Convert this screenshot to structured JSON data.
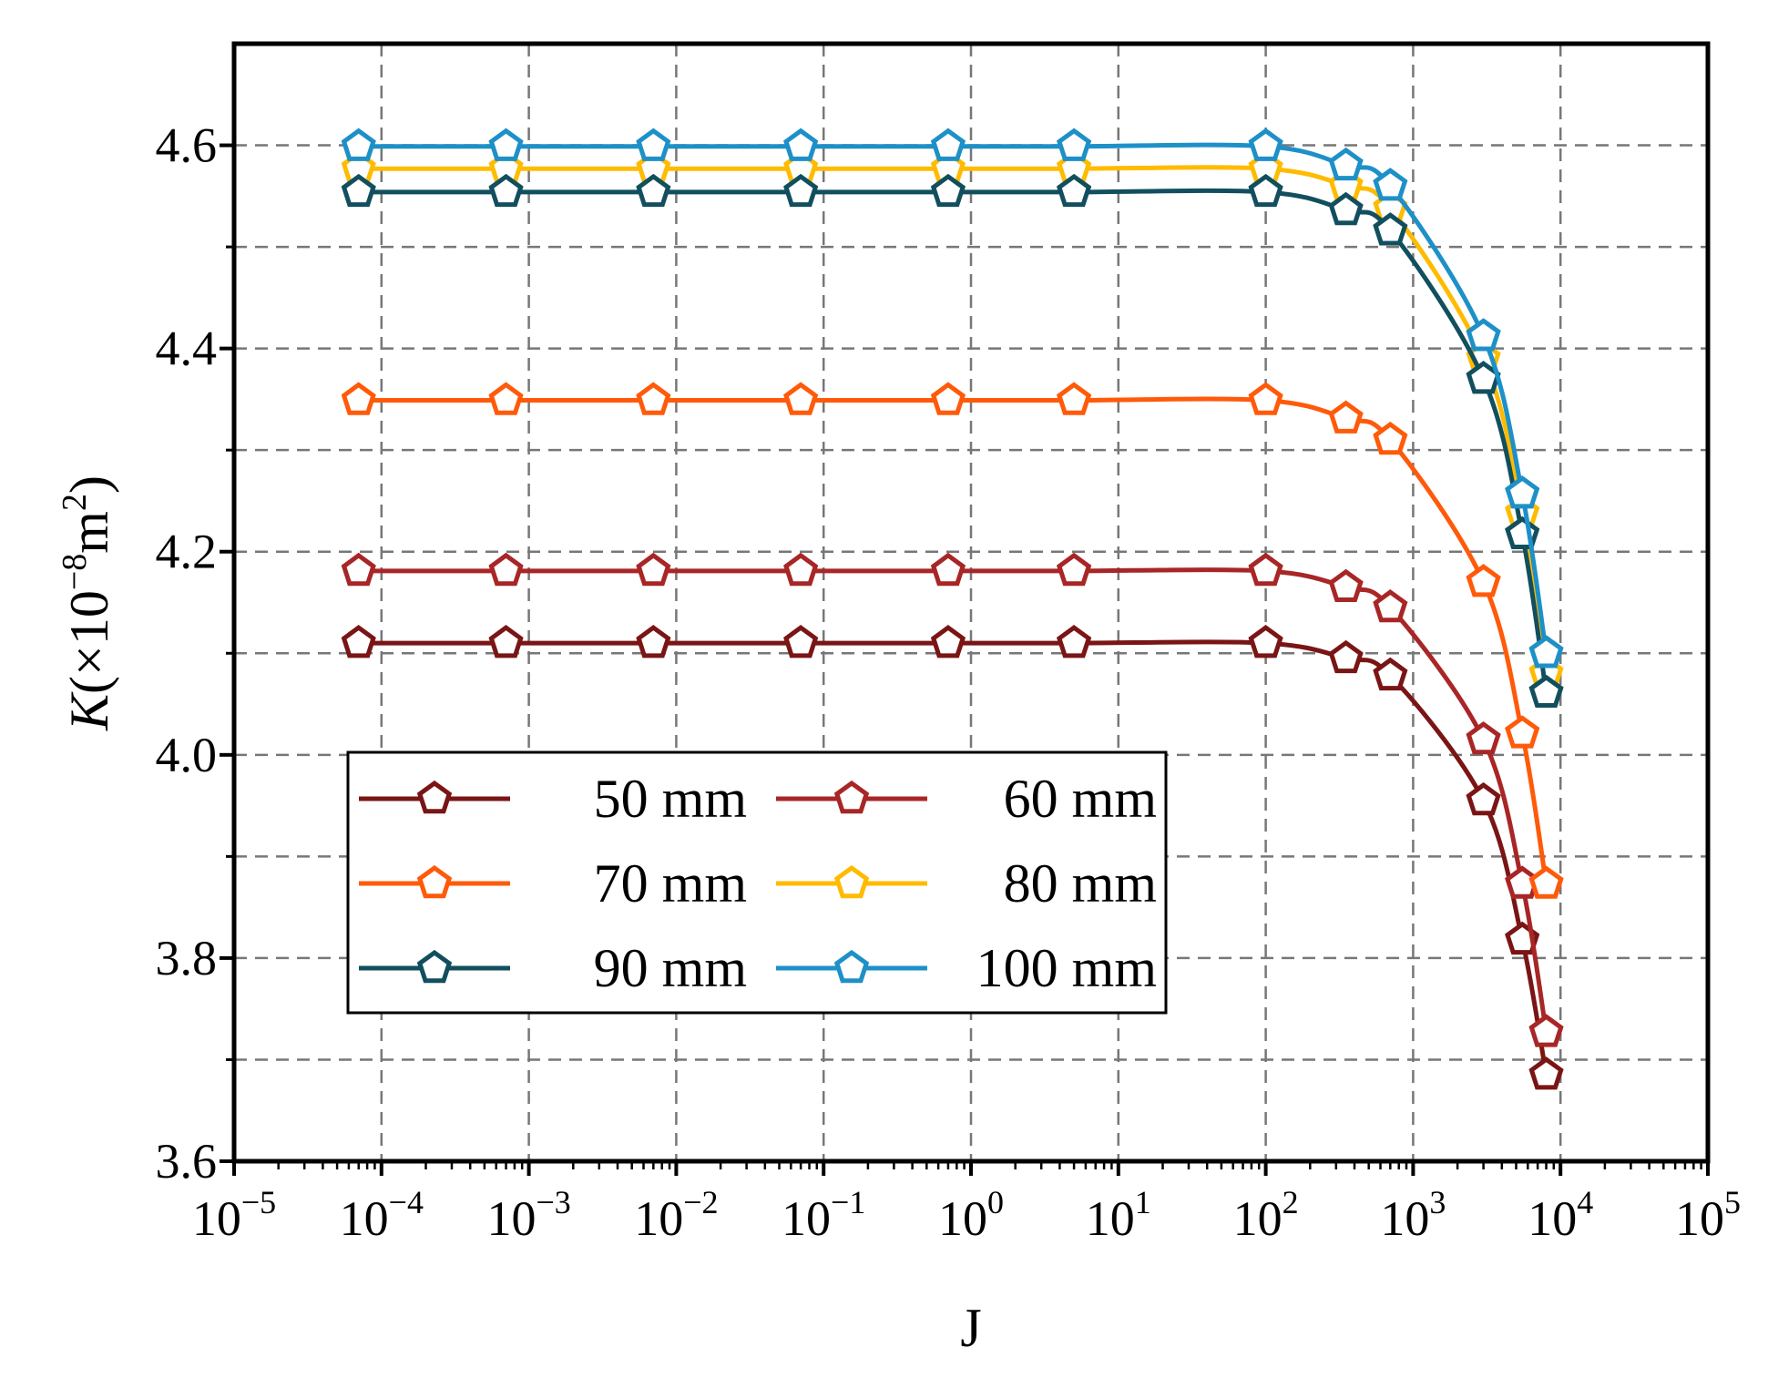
{
  "chart_data": {
    "type": "line",
    "xscale": "log",
    "xlabel": "J",
    "ylabel_symbol": "K",
    "ylabel_unit_open": "(×10",
    "ylabel_exp": "−8",
    "ylabel_unit_mid": "m",
    "ylabel_exp2": "2",
    "ylabel_close": ")",
    "xlim_exp": [
      -5,
      5
    ],
    "ylim": [
      3.6,
      4.7
    ],
    "grid": true,
    "legend_position": "lower-left",
    "x_tick_base": "10",
    "x_tick_exponents": [
      "−5",
      "−4",
      "−3",
      "−2",
      "−1",
      "0",
      "1",
      "2",
      "3",
      "4",
      "5"
    ],
    "y_ticks": [
      "3.6",
      "3.8",
      "4.0",
      "4.2",
      "4.4",
      "4.6"
    ],
    "x": [
      7e-05,
      0.0007,
      0.007,
      0.07,
      0.7,
      5,
      100,
      350,
      700,
      3000,
      5500,
      8000
    ],
    "series": [
      {
        "name": "50 mm",
        "color": "#7a1515",
        "values": [
          4.11,
          4.11,
          4.11,
          4.11,
          4.11,
          4.11,
          4.11,
          4.095,
          4.078,
          3.955,
          3.818,
          3.685
        ]
      },
      {
        "name": "60 mm",
        "color": "#a82626",
        "values": [
          4.181,
          4.181,
          4.181,
          4.181,
          4.181,
          4.181,
          4.181,
          4.165,
          4.145,
          4.015,
          3.873,
          3.727
        ]
      },
      {
        "name": "70 mm",
        "color": "#ff5a0a",
        "values": [
          4.349,
          4.349,
          4.349,
          4.349,
          4.349,
          4.349,
          4.349,
          4.331,
          4.31,
          4.17,
          4.021,
          3.873
        ]
      },
      {
        "name": "80 mm",
        "color": "#ffbb00",
        "values": [
          4.577,
          4.577,
          4.577,
          4.577,
          4.577,
          4.577,
          4.577,
          4.56,
          4.538,
          4.39,
          4.238,
          4.08
        ]
      },
      {
        "name": "90 mm",
        "color": "#124f5e",
        "values": [
          4.554,
          4.554,
          4.554,
          4.554,
          4.554,
          4.554,
          4.554,
          4.536,
          4.516,
          4.37,
          4.217,
          4.061
        ]
      },
      {
        "name": "100 mm",
        "color": "#1e90c8",
        "values": [
          4.599,
          4.599,
          4.599,
          4.599,
          4.599,
          4.599,
          4.599,
          4.58,
          4.56,
          4.412,
          4.257,
          4.1
        ]
      }
    ]
  }
}
